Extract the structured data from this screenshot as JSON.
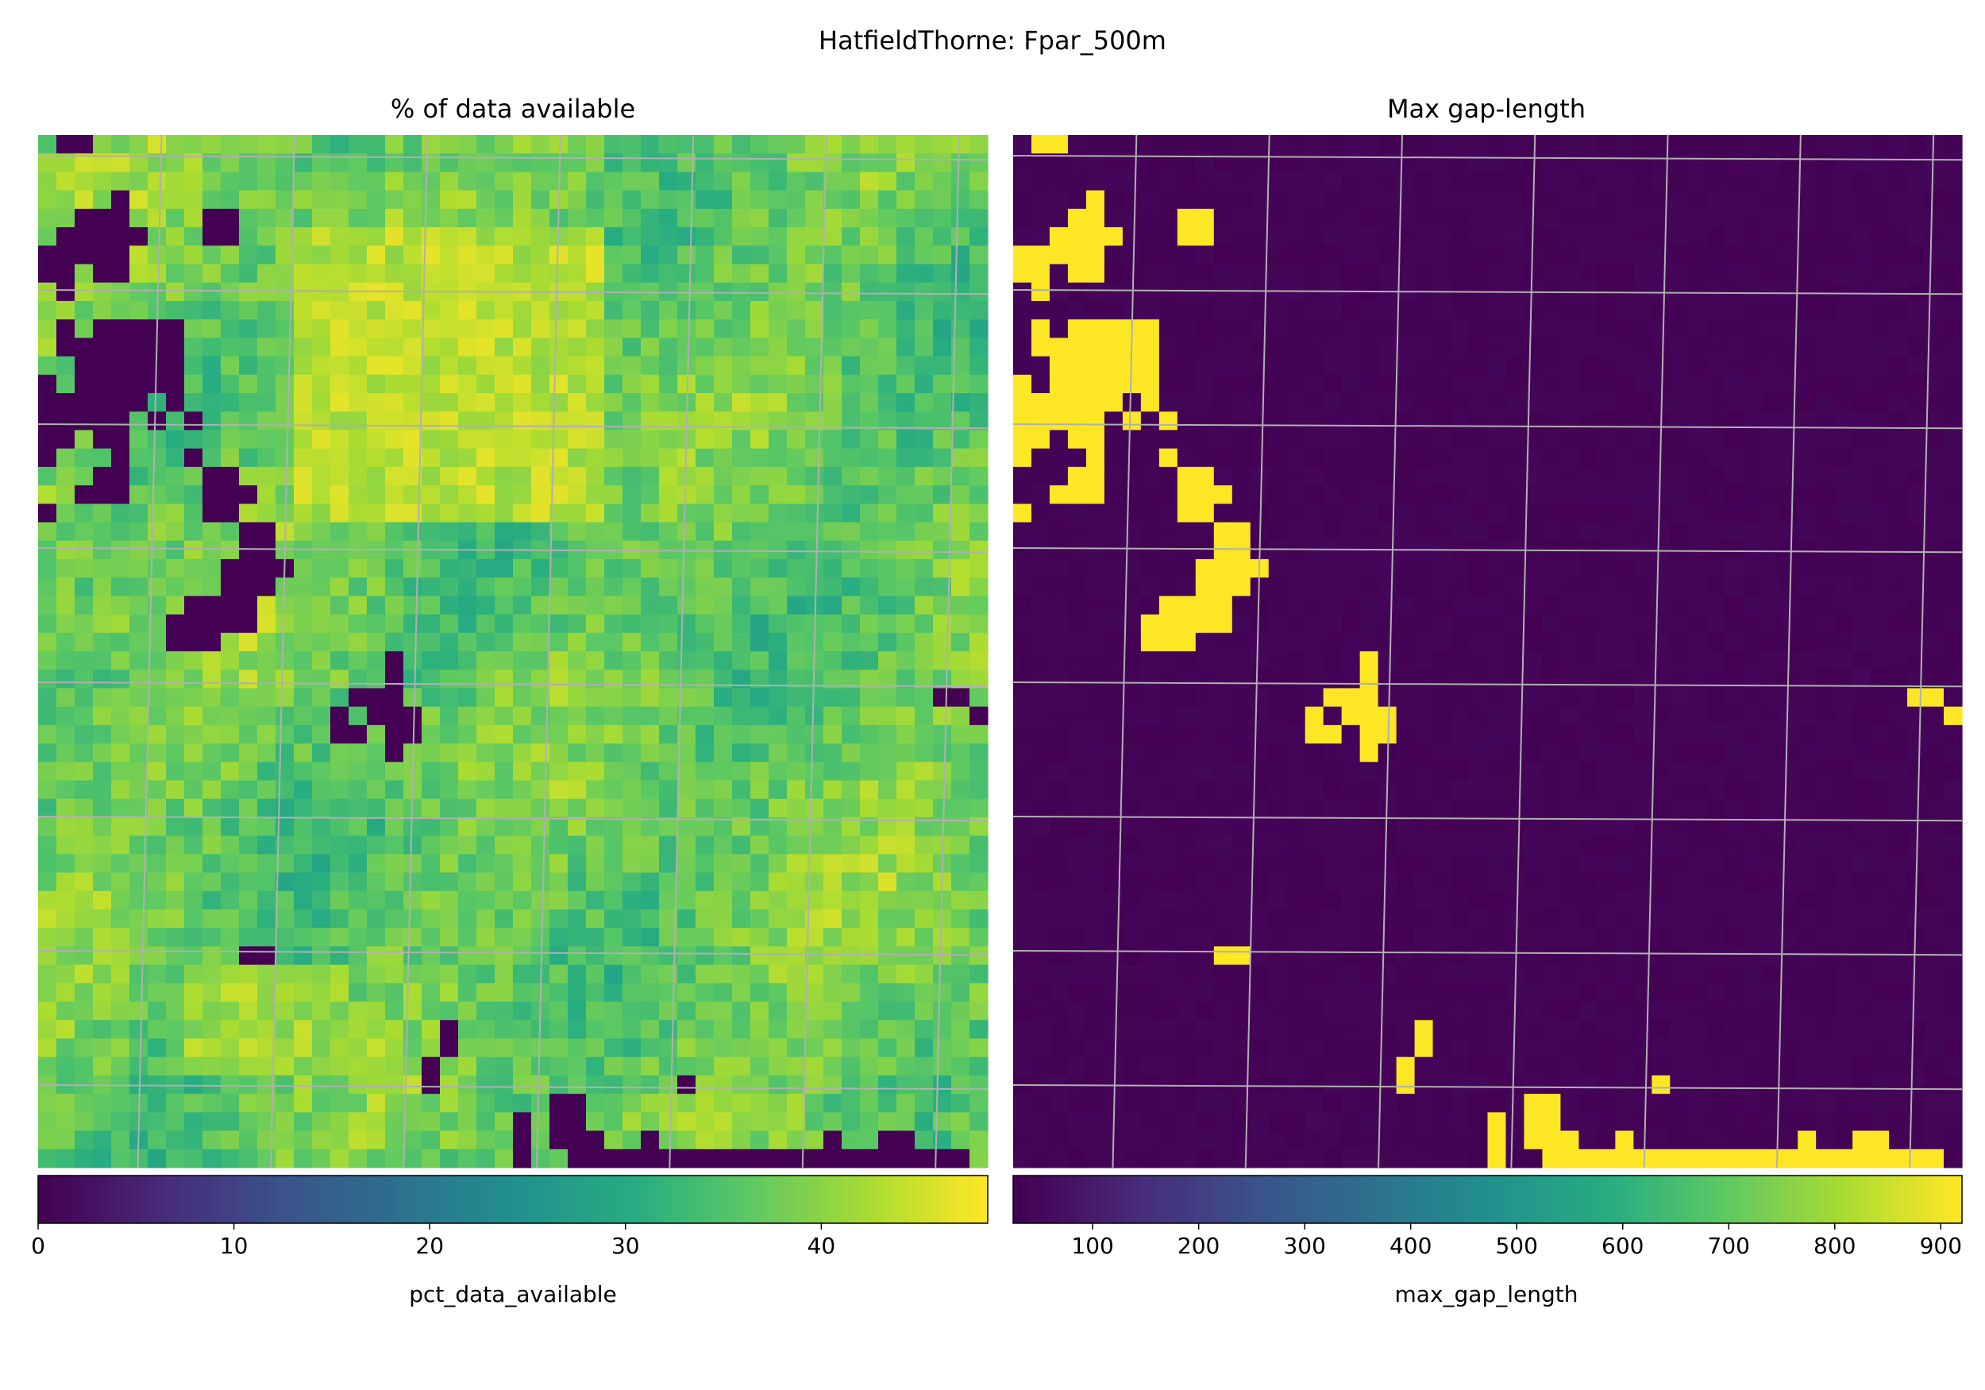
{
  "figure": {
    "suptitle": "HatfieldThorne: Fpar_500m"
  },
  "chart_data": [
    {
      "type": "heatmap",
      "title": "% of data available",
      "colorbar_label": "pct_data_available",
      "colormap": "viridis",
      "range": [
        0,
        48.5
      ],
      "colorbar_ticks": [
        0,
        10,
        20,
        30,
        40
      ],
      "grid": "on",
      "grid_size": [
        52,
        56
      ],
      "background_range": [
        28,
        47
      ],
      "no_data_value": 0,
      "no_data_cells_rc": [
        [
          0,
          1
        ],
        [
          0,
          2
        ],
        [
          3,
          4
        ],
        [
          4,
          2
        ],
        [
          4,
          3
        ],
        [
          4,
          4
        ],
        [
          4,
          9
        ],
        [
          4,
          10
        ],
        [
          5,
          1
        ],
        [
          5,
          2
        ],
        [
          5,
          3
        ],
        [
          5,
          4
        ],
        [
          5,
          5
        ],
        [
          5,
          9
        ],
        [
          5,
          10
        ],
        [
          6,
          0
        ],
        [
          6,
          1
        ],
        [
          6,
          2
        ],
        [
          6,
          3
        ],
        [
          6,
          4
        ],
        [
          7,
          0
        ],
        [
          7,
          1
        ],
        [
          7,
          3
        ],
        [
          7,
          4
        ],
        [
          8,
          1
        ],
        [
          10,
          1
        ],
        [
          10,
          3
        ],
        [
          10,
          4
        ],
        [
          10,
          5
        ],
        [
          10,
          6
        ],
        [
          10,
          7
        ],
        [
          11,
          1
        ],
        [
          11,
          2
        ],
        [
          11,
          3
        ],
        [
          11,
          4
        ],
        [
          11,
          5
        ],
        [
          11,
          6
        ],
        [
          11,
          7
        ],
        [
          12,
          2
        ],
        [
          12,
          3
        ],
        [
          12,
          4
        ],
        [
          12,
          5
        ],
        [
          12,
          6
        ],
        [
          12,
          7
        ],
        [
          13,
          0
        ],
        [
          13,
          2
        ],
        [
          13,
          3
        ],
        [
          13,
          4
        ],
        [
          13,
          5
        ],
        [
          13,
          6
        ],
        [
          13,
          7
        ],
        [
          14,
          0
        ],
        [
          14,
          1
        ],
        [
          14,
          2
        ],
        [
          14,
          3
        ],
        [
          14,
          4
        ],
        [
          14,
          5
        ],
        [
          14,
          7
        ],
        [
          15,
          0
        ],
        [
          15,
          1
        ],
        [
          15,
          2
        ],
        [
          15,
          3
        ],
        [
          15,
          4
        ],
        [
          15,
          6
        ],
        [
          15,
          8
        ],
        [
          16,
          0
        ],
        [
          16,
          1
        ],
        [
          16,
          3
        ],
        [
          16,
          4
        ],
        [
          17,
          0
        ],
        [
          17,
          4
        ],
        [
          17,
          8
        ],
        [
          18,
          3
        ],
        [
          18,
          4
        ],
        [
          18,
          9
        ],
        [
          18,
          10
        ],
        [
          19,
          2
        ],
        [
          19,
          3
        ],
        [
          19,
          4
        ],
        [
          19,
          9
        ],
        [
          19,
          10
        ],
        [
          19,
          11
        ],
        [
          20,
          0
        ],
        [
          20,
          9
        ],
        [
          20,
          10
        ],
        [
          21,
          11
        ],
        [
          21,
          12
        ],
        [
          22,
          11
        ],
        [
          22,
          12
        ],
        [
          23,
          10
        ],
        [
          23,
          11
        ],
        [
          23,
          12
        ],
        [
          23,
          13
        ],
        [
          24,
          10
        ],
        [
          24,
          11
        ],
        [
          24,
          12
        ],
        [
          25,
          8
        ],
        [
          25,
          9
        ],
        [
          25,
          10
        ],
        [
          25,
          11
        ],
        [
          26,
          7
        ],
        [
          26,
          8
        ],
        [
          26,
          9
        ],
        [
          26,
          10
        ],
        [
          26,
          11
        ],
        [
          27,
          7
        ],
        [
          27,
          8
        ],
        [
          27,
          9
        ],
        [
          28,
          19
        ],
        [
          29,
          19
        ],
        [
          30,
          17
        ],
        [
          30,
          18
        ],
        [
          30,
          19
        ],
        [
          30,
          49
        ],
        [
          30,
          50
        ],
        [
          31,
          16
        ],
        [
          31,
          18
        ],
        [
          31,
          19
        ],
        [
          31,
          20
        ],
        [
          31,
          51
        ],
        [
          32,
          16
        ],
        [
          32,
          17
        ],
        [
          32,
          19
        ],
        [
          32,
          20
        ],
        [
          33,
          19
        ],
        [
          44,
          11
        ],
        [
          44,
          12
        ],
        [
          48,
          22
        ],
        [
          49,
          22
        ],
        [
          50,
          21
        ],
        [
          51,
          21
        ],
        [
          51,
          35
        ],
        [
          52,
          28
        ],
        [
          52,
          29
        ],
        [
          53,
          26
        ],
        [
          53,
          28
        ],
        [
          53,
          29
        ],
        [
          54,
          26
        ],
        [
          54,
          28
        ],
        [
          54,
          29
        ],
        [
          54,
          30
        ],
        [
          54,
          33
        ],
        [
          54,
          43
        ],
        [
          54,
          46
        ],
        [
          54,
          47
        ],
        [
          55,
          26
        ],
        [
          55,
          29
        ],
        [
          55,
          30
        ],
        [
          55,
          31
        ],
        [
          55,
          32
        ],
        [
          55,
          33
        ],
        [
          55,
          34
        ],
        [
          55,
          35
        ],
        [
          55,
          36
        ],
        [
          55,
          37
        ],
        [
          55,
          38
        ],
        [
          55,
          39
        ],
        [
          55,
          40
        ],
        [
          55,
          41
        ],
        [
          55,
          42
        ],
        [
          55,
          43
        ],
        [
          55,
          44
        ],
        [
          55,
          45
        ],
        [
          55,
          46
        ],
        [
          55,
          47
        ],
        [
          55,
          48
        ],
        [
          55,
          49
        ],
        [
          55,
          50
        ]
      ],
      "bright_patches": [
        {
          "label": "upper-centre",
          "value": 45
        },
        {
          "label": "top-right-centre",
          "value": 46
        },
        {
          "label": "lower-left",
          "value": 43
        }
      ]
    },
    {
      "type": "heatmap",
      "title": "Max gap-length",
      "colorbar_label": "max_gap_length",
      "colormap": "viridis",
      "range": [
        25,
        920
      ],
      "colorbar_ticks": [
        100,
        200,
        300,
        400,
        500,
        600,
        700,
        800,
        900
      ],
      "grid": "on",
      "grid_size": [
        52,
        56
      ],
      "background_value": 25,
      "gap_value": 920,
      "gap_cells_rc": [
        [
          0,
          1
        ],
        [
          0,
          2
        ],
        [
          3,
          4
        ],
        [
          4,
          3
        ],
        [
          4,
          4
        ],
        [
          4,
          9
        ],
        [
          4,
          10
        ],
        [
          5,
          2
        ],
        [
          5,
          3
        ],
        [
          5,
          4
        ],
        [
          5,
          5
        ],
        [
          5,
          9
        ],
        [
          5,
          10
        ],
        [
          6,
          0
        ],
        [
          6,
          1
        ],
        [
          6,
          2
        ],
        [
          6,
          3
        ],
        [
          6,
          4
        ],
        [
          7,
          0
        ],
        [
          7,
          1
        ],
        [
          7,
          3
        ],
        [
          7,
          4
        ],
        [
          8,
          1
        ],
        [
          10,
          1
        ],
        [
          10,
          3
        ],
        [
          10,
          4
        ],
        [
          10,
          5
        ],
        [
          10,
          6
        ],
        [
          10,
          7
        ],
        [
          11,
          1
        ],
        [
          11,
          2
        ],
        [
          11,
          3
        ],
        [
          11,
          4
        ],
        [
          11,
          5
        ],
        [
          11,
          6
        ],
        [
          11,
          7
        ],
        [
          12,
          2
        ],
        [
          12,
          3
        ],
        [
          12,
          4
        ],
        [
          12,
          5
        ],
        [
          12,
          6
        ],
        [
          12,
          7
        ],
        [
          13,
          0
        ],
        [
          13,
          2
        ],
        [
          13,
          3
        ],
        [
          13,
          4
        ],
        [
          13,
          5
        ],
        [
          13,
          6
        ],
        [
          13,
          7
        ],
        [
          14,
          0
        ],
        [
          14,
          1
        ],
        [
          14,
          2
        ],
        [
          14,
          3
        ],
        [
          14,
          4
        ],
        [
          14,
          5
        ],
        [
          14,
          7
        ],
        [
          15,
          0
        ],
        [
          15,
          1
        ],
        [
          15,
          2
        ],
        [
          15,
          3
        ],
        [
          15,
          4
        ],
        [
          15,
          6
        ],
        [
          15,
          8
        ],
        [
          16,
          0
        ],
        [
          16,
          1
        ],
        [
          16,
          3
        ],
        [
          16,
          4
        ],
        [
          17,
          0
        ],
        [
          17,
          4
        ],
        [
          17,
          8
        ],
        [
          18,
          3
        ],
        [
          18,
          4
        ],
        [
          18,
          9
        ],
        [
          18,
          10
        ],
        [
          19,
          2
        ],
        [
          19,
          3
        ],
        [
          19,
          4
        ],
        [
          19,
          9
        ],
        [
          19,
          10
        ],
        [
          19,
          11
        ],
        [
          20,
          0
        ],
        [
          20,
          9
        ],
        [
          20,
          10
        ],
        [
          21,
          11
        ],
        [
          21,
          12
        ],
        [
          22,
          11
        ],
        [
          22,
          12
        ],
        [
          23,
          10
        ],
        [
          23,
          11
        ],
        [
          23,
          12
        ],
        [
          23,
          13
        ],
        [
          24,
          10
        ],
        [
          24,
          11
        ],
        [
          24,
          12
        ],
        [
          25,
          8
        ],
        [
          25,
          9
        ],
        [
          25,
          10
        ],
        [
          25,
          11
        ],
        [
          26,
          7
        ],
        [
          26,
          8
        ],
        [
          26,
          9
        ],
        [
          26,
          10
        ],
        [
          26,
          11
        ],
        [
          27,
          7
        ],
        [
          27,
          8
        ],
        [
          27,
          9
        ],
        [
          28,
          19
        ],
        [
          29,
          19
        ],
        [
          30,
          17
        ],
        [
          30,
          18
        ],
        [
          30,
          19
        ],
        [
          30,
          49
        ],
        [
          30,
          50
        ],
        [
          31,
          16
        ],
        [
          31,
          18
        ],
        [
          31,
          19
        ],
        [
          31,
          20
        ],
        [
          31,
          51
        ],
        [
          32,
          16
        ],
        [
          32,
          17
        ],
        [
          32,
          19
        ],
        [
          32,
          20
        ],
        [
          33,
          19
        ],
        [
          44,
          11
        ],
        [
          44,
          12
        ],
        [
          48,
          22
        ],
        [
          49,
          22
        ],
        [
          50,
          21
        ],
        [
          51,
          21
        ],
        [
          51,
          35
        ],
        [
          52,
          28
        ],
        [
          52,
          29
        ],
        [
          53,
          26
        ],
        [
          53,
          28
        ],
        [
          53,
          29
        ],
        [
          54,
          26
        ],
        [
          54,
          28
        ],
        [
          54,
          29
        ],
        [
          54,
          30
        ],
        [
          54,
          33
        ],
        [
          54,
          43
        ],
        [
          54,
          46
        ],
        [
          54,
          47
        ],
        [
          55,
          26
        ],
        [
          55,
          29
        ],
        [
          55,
          30
        ],
        [
          55,
          31
        ],
        [
          55,
          32
        ],
        [
          55,
          33
        ],
        [
          55,
          34
        ],
        [
          55,
          35
        ],
        [
          55,
          36
        ],
        [
          55,
          37
        ],
        [
          55,
          38
        ],
        [
          55,
          39
        ],
        [
          55,
          40
        ],
        [
          55,
          41
        ],
        [
          55,
          42
        ],
        [
          55,
          43
        ],
        [
          55,
          44
        ],
        [
          55,
          45
        ],
        [
          55,
          46
        ],
        [
          55,
          47
        ],
        [
          55,
          48
        ],
        [
          55,
          49
        ],
        [
          55,
          50
        ]
      ]
    }
  ]
}
